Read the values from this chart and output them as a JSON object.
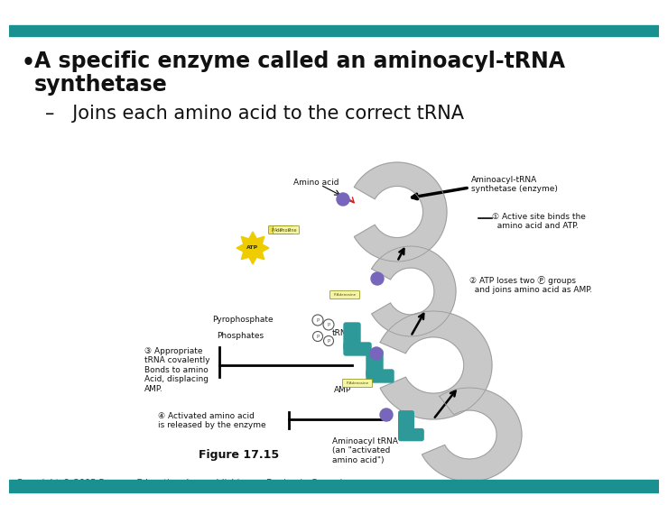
{
  "bg_color": "#ffffff",
  "teal_bar_color": "#1a9090",
  "bullet_text_line1": "A specific enzyme called an aminoacyl-tRNA",
  "bullet_text_line2": "synthetase",
  "bullet_symbol": "•",
  "bullet_text_color": "#111111",
  "bullet_fontsize": 17,
  "sub_bullet_text": "Joins each amino acid to the correct tRNA",
  "sub_bullet_color": "#111111",
  "sub_bullet_fontsize": 15,
  "figure_label": "Figure 17.15",
  "copyright_text": "Copyright © 2005 Pearson Education, Inc. publishing as Benjamin Cummings",
  "copyright_fontsize": 7,
  "copyright_color": "#333333",
  "enzyme_color": "#c8c8c8",
  "trna_color": "#2e9999",
  "aa_color": "#7766bb",
  "arrow_color": "#444444",
  "red_arrow_color": "#cc2222",
  "atp_color": "#eecc00",
  "label_fontsize": 6.5,
  "step_label_fontsize": 6.5,
  "anno_color": "#111111"
}
